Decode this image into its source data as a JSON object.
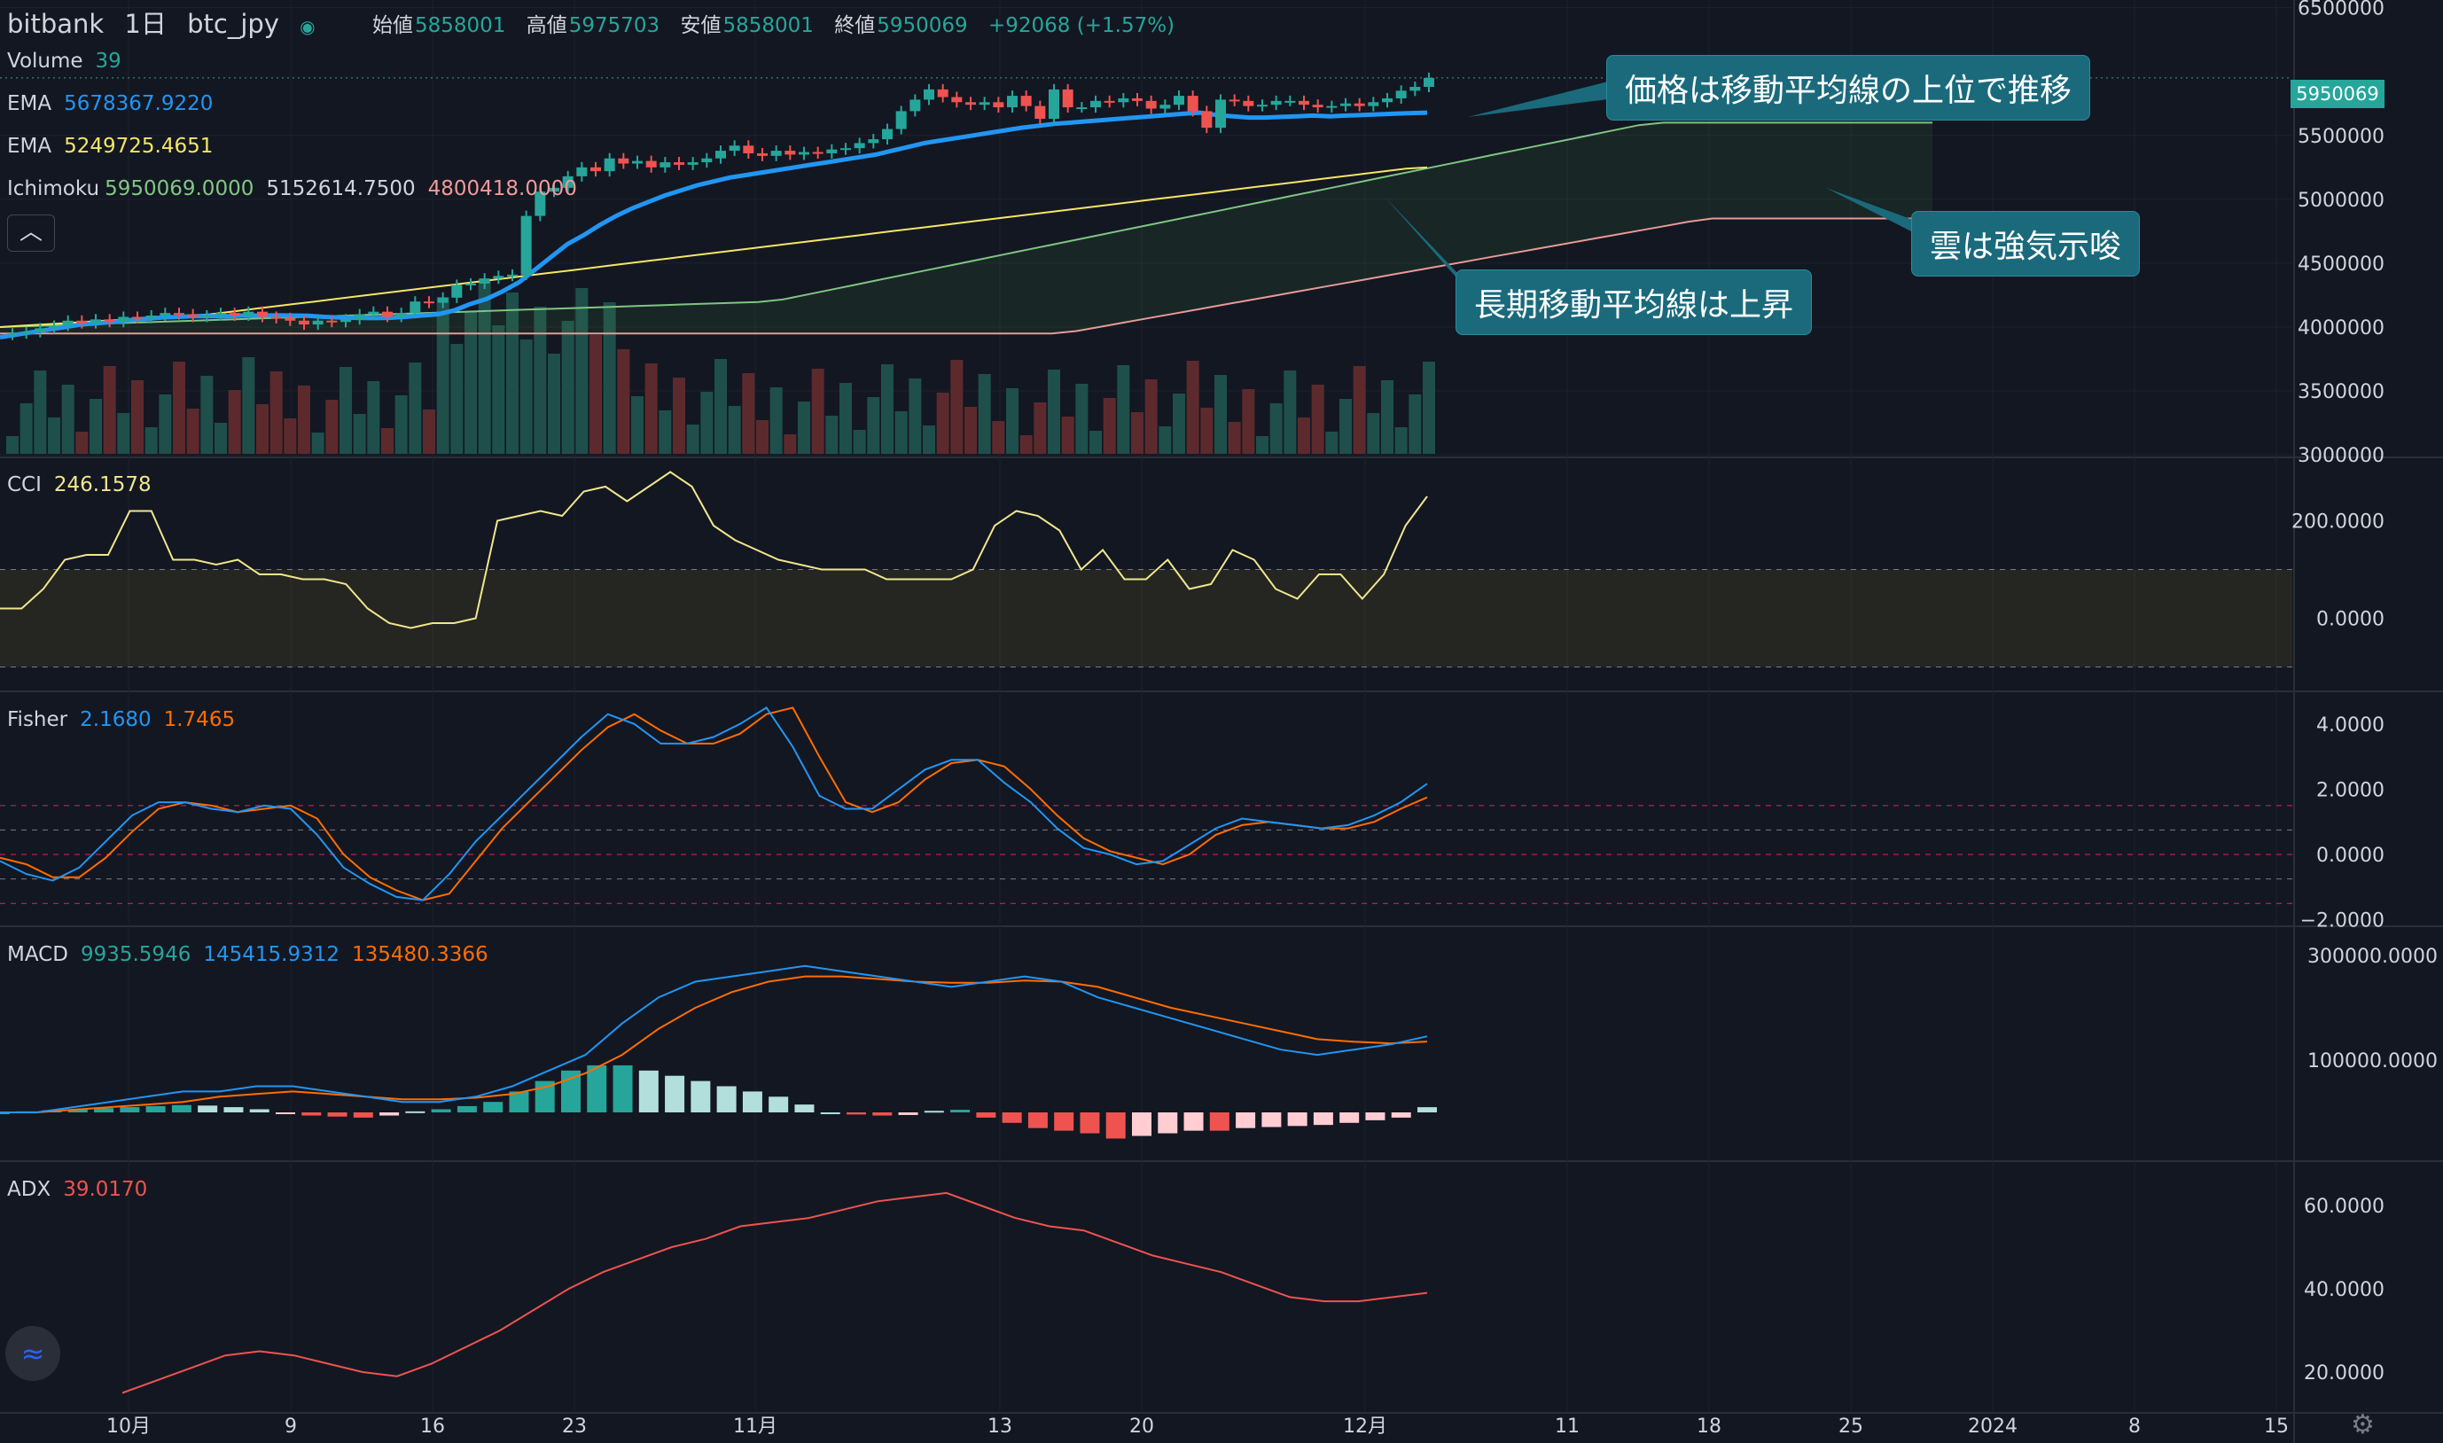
{
  "header": {
    "exchange": "bitbank",
    "interval": "1日",
    "symbol": "btc_jpy",
    "ohlc": {
      "open_label": "始値",
      "open": "5858001",
      "high_label": "高値",
      "high": "5975703",
      "low_label": "安値",
      "low": "5858001",
      "close_label": "終値",
      "close": "5950069",
      "change": "+92068 (+1.57%)"
    }
  },
  "legends": {
    "volume": {
      "name": "Volume",
      "value": "39"
    },
    "ema1": {
      "name": "EMA",
      "value": "5678367.9220"
    },
    "ema2": {
      "name": "EMA",
      "value": "5249725.4651"
    },
    "ichimoku": {
      "name": "Ichimoku",
      "v1": "5950069.0000",
      "v2": "5152614.7500",
      "v3": "4800418.0000"
    },
    "cci": {
      "name": "CCI",
      "value": "246.1578"
    },
    "fisher": {
      "name": "Fisher",
      "v1": "2.1680",
      "v2": "1.7465"
    },
    "macd": {
      "name": "MACD",
      "v1": "9935.5946",
      "v2": "145415.9312",
      "v3": "135480.3366"
    },
    "adx": {
      "name": "ADX",
      "value": "39.0170"
    }
  },
  "callouts": {
    "c1": "価格は移動平均線の上位で推移",
    "c2": "雲は強気示唆",
    "c3": "長期移動平均線は上昇"
  },
  "price_label": "5950069",
  "colors": {
    "bg": "#131722",
    "up": "#26a69a",
    "down": "#ef5350",
    "ema1": "#2196f3",
    "ema2": "#f5e663",
    "cci": "#f0e68c",
    "fisher1": "#2196f3",
    "fisher2": "#ff6d00",
    "macd": "#2196f3",
    "signal": "#ff6d00",
    "adx": "#ef5350",
    "callout": "#1a6a7c"
  },
  "icons": {
    "collapse": "chevron-up-icon",
    "logo": "tradingview-logo-icon",
    "settings": "gear-icon"
  },
  "chart_data": {
    "type": "candlestick",
    "x_tick_labels": [
      "10月",
      "9",
      "16",
      "23",
      "11月",
      "13",
      "20",
      "12月",
      "11",
      "18",
      "25",
      "2024",
      "8",
      "15"
    ],
    "price_axis_ticks": [
      "6500000",
      "5500000",
      "5000000",
      "4500000",
      "4000000",
      "3500000",
      "3000000"
    ],
    "cci_axis_ticks": [
      "200.0000",
      "0.0000"
    ],
    "fisher_axis_ticks": [
      "4.0000",
      "2.0000",
      "0.0000",
      "−2.0000"
    ],
    "macd_axis_ticks": [
      "300000.0000",
      "100000.0000"
    ],
    "adx_axis_ticks": [
      "60.0000",
      "40.0000",
      "20.0000"
    ],
    "price_ylim": [
      2980000,
      6560000
    ],
    "close": [
      3950000,
      3960000,
      3990000,
      4010000,
      4050000,
      4030000,
      4060000,
      4040000,
      4080000,
      4070000,
      4090000,
      4110000,
      4100000,
      4080000,
      4090000,
      4110000,
      4090000,
      4120000,
      4080000,
      4070000,
      4050000,
      4020000,
      4050000,
      4040000,
      4060000,
      4100000,
      4120000,
      4080000,
      4110000,
      4200000,
      4190000,
      4230000,
      4330000,
      4340000,
      4380000,
      4400000,
      4410000,
      4870000,
      5060000,
      5090000,
      5180000,
      5250000,
      5220000,
      5320000,
      5280000,
      5300000,
      5250000,
      5290000,
      5270000,
      5290000,
      5320000,
      5380000,
      5420000,
      5360000,
      5340000,
      5380000,
      5350000,
      5370000,
      5360000,
      5390000,
      5400000,
      5440000,
      5470000,
      5550000,
      5690000,
      5780000,
      5860000,
      5800000,
      5760000,
      5740000,
      5760000,
      5720000,
      5810000,
      5730000,
      5630000,
      5860000,
      5720000,
      5720000,
      5770000,
      5760000,
      5790000,
      5770000,
      5710000,
      5740000,
      5810000,
      5690000,
      5560000,
      5780000,
      5770000,
      5730000,
      5740000,
      5770000,
      5770000,
      5740000,
      5720000,
      5730000,
      5750000,
      5730000,
      5760000,
      5790000,
      5850000,
      5880000,
      5950069
    ],
    "ema_fast": [
      3920000,
      3940000,
      3960000,
      3980000,
      4000000,
      4020000,
      4030000,
      4040000,
      4055000,
      4065000,
      4075000,
      4080000,
      4085000,
      4085000,
      4085000,
      4090000,
      4090000,
      4092000,
      4090000,
      4088000,
      4080000,
      4075000,
      4072000,
      4070000,
      4072000,
      4080000,
      4090000,
      4100000,
      4130000,
      4180000,
      4220000,
      4280000,
      4350000,
      4450000,
      4550000,
      4650000,
      4720000,
      4800000,
      4870000,
      4930000,
      4980000,
      5030000,
      5070000,
      5110000,
      5140000,
      5170000,
      5190000,
      5210000,
      5230000,
      5250000,
      5270000,
      5290000,
      5310000,
      5330000,
      5350000,
      5380000,
      5410000,
      5440000,
      5460000,
      5480000,
      5500000,
      5520000,
      5540000,
      5560000,
      5575000,
      5590000,
      5600000,
      5610000,
      5620000,
      5630000,
      5640000,
      5650000,
      5660000,
      5670000,
      5678000,
      5660000,
      5650000,
      5640000,
      5640000,
      5645000,
      5650000,
      5655000,
      5650000,
      5655000,
      5660000,
      5665000,
      5670000,
      5675000,
      5678367
    ],
    "ema_slow": [
      4000000,
      4010000,
      4020000,
      4030000,
      4040000,
      4050000,
      4060000,
      4070000,
      4080000,
      4090000,
      4100000,
      4120000,
      4140000,
      4160000,
      4180000,
      4200000,
      4220000,
      4240000,
      4260000,
      4280000,
      4300000,
      4320000,
      4340000,
      4360000,
      4380000,
      4400000,
      4420000,
      4440000,
      4460000,
      4480000,
      4500000,
      4520000,
      4540000,
      4560000,
      4580000,
      4600000,
      4620000,
      4640000,
      4660000,
      4680000,
      4700000,
      4720000,
      4740000,
      4760000,
      4780000,
      4800000,
      4820000,
      4840000,
      4860000,
      4880000,
      4900000,
      4920000,
      4940000,
      4960000,
      4980000,
      5000000,
      5020000,
      5040000,
      5060000,
      5080000,
      5100000,
      5120000,
      5140000,
      5160000,
      5180000,
      5200000,
      5220000,
      5240000,
      5249725
    ],
    "cci": [
      20,
      20,
      60,
      120,
      130,
      130,
      220,
      220,
      120,
      120,
      110,
      120,
      90,
      90,
      80,
      80,
      70,
      20,
      -10,
      -20,
      -10,
      -10,
      0,
      200,
      210,
      220,
      210,
      260,
      270,
      240,
      270,
      300,
      270,
      190,
      160,
      140,
      120,
      110,
      100,
      100,
      100,
      80,
      80,
      80,
      80,
      100,
      190,
      220,
      210,
      180,
      100,
      140,
      80,
      80,
      120,
      60,
      70,
      140,
      120,
      60,
      40,
      90,
      90,
      40,
      90,
      190,
      250
    ],
    "fisher": [
      -0.2,
      -0.6,
      -0.8,
      -0.4,
      0.4,
      1.2,
      1.6,
      1.6,
      1.4,
      1.3,
      1.5,
      1.4,
      0.6,
      -0.4,
      -0.9,
      -1.3,
      -1.4,
      -0.6,
      0.4,
      1.2,
      2.0,
      2.8,
      3.6,
      4.3,
      4.0,
      3.4,
      3.4,
      3.6,
      4.0,
      4.5,
      3.3,
      1.8,
      1.4,
      1.4,
      2.0,
      2.6,
      2.9,
      2.9,
      2.2,
      1.6,
      0.8,
      0.2,
      0.0,
      -0.3,
      -0.2,
      0.3,
      0.8,
      1.1,
      1.0,
      0.9,
      0.8,
      0.9,
      1.2,
      1.6,
      2.17
    ],
    "fisher_signal": [
      -0.1,
      -0.3,
      -0.7,
      -0.7,
      -0.1,
      0.7,
      1.4,
      1.6,
      1.5,
      1.3,
      1.4,
      1.5,
      1.1,
      0.0,
      -0.7,
      -1.1,
      -1.4,
      -1.2,
      -0.2,
      0.8,
      1.6,
      2.4,
      3.2,
      3.9,
      4.3,
      3.8,
      3.4,
      3.4,
      3.7,
      4.3,
      4.5,
      3.0,
      1.6,
      1.3,
      1.6,
      2.3,
      2.8,
      2.9,
      2.7,
      2.0,
      1.2,
      0.5,
      0.1,
      -0.1,
      -0.3,
      0.0,
      0.6,
      0.9,
      1.0,
      0.9,
      0.8,
      0.8,
      1.0,
      1.4,
      1.75
    ],
    "macd": [
      0,
      0,
      10000,
      20000,
      30000,
      40000,
      40000,
      50000,
      50000,
      40000,
      30000,
      20000,
      20000,
      30000,
      50000,
      80000,
      110000,
      170000,
      220000,
      250000,
      260000,
      270000,
      280000,
      270000,
      260000,
      250000,
      240000,
      250000,
      260000,
      250000,
      220000,
      200000,
      180000,
      160000,
      140000,
      120000,
      110000,
      120000,
      130000,
      145416
    ],
    "macd_signal": [
      0,
      0,
      5000,
      10000,
      15000,
      20000,
      30000,
      35000,
      40000,
      35000,
      30000,
      25000,
      25000,
      28000,
      35000,
      50000,
      75000,
      110000,
      160000,
      200000,
      230000,
      250000,
      260000,
      260000,
      255000,
      250000,
      248000,
      248000,
      252000,
      250000,
      240000,
      220000,
      200000,
      185000,
      170000,
      155000,
      140000,
      135000,
      132000,
      135480
    ],
    "macd_histogram": [
      0,
      2000,
      4000,
      6000,
      8000,
      10000,
      12000,
      14000,
      13000,
      10000,
      6000,
      -2000,
      -6000,
      -8000,
      -10000,
      -6000,
      2000,
      6000,
      12000,
      20000,
      40000,
      60000,
      80000,
      90000,
      90000,
      80000,
      70000,
      60000,
      50000,
      40000,
      30000,
      15000,
      0,
      -4000,
      -6000,
      -5000,
      3000,
      5000,
      -10000,
      -20000,
      -30000,
      -35000,
      -40000,
      -50000,
      -45000,
      -40000,
      -35000,
      -35000,
      -30000,
      -28000,
      -26000,
      -24000,
      -20000,
      -15000,
      -10000,
      9936
    ],
    "adx": [
      15,
      18,
      21,
      24,
      25,
      24,
      22,
      20,
      19,
      22,
      26,
      30,
      35,
      40,
      44,
      47,
      50,
      52,
      55,
      56,
      57,
      59,
      61,
      62,
      63,
      60,
      57,
      55,
      54,
      51,
      48,
      46,
      44,
      41,
      38,
      37,
      37,
      38,
      39.017
    ]
  }
}
